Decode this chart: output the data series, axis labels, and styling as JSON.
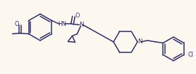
{
  "background_color": "#fdf8ef",
  "line_color": "#2d2d6b",
  "figsize": [
    2.78,
    1.06
  ],
  "dpi": 100,
  "xlim": [
    0,
    278
  ],
  "ylim": [
    0,
    106
  ]
}
